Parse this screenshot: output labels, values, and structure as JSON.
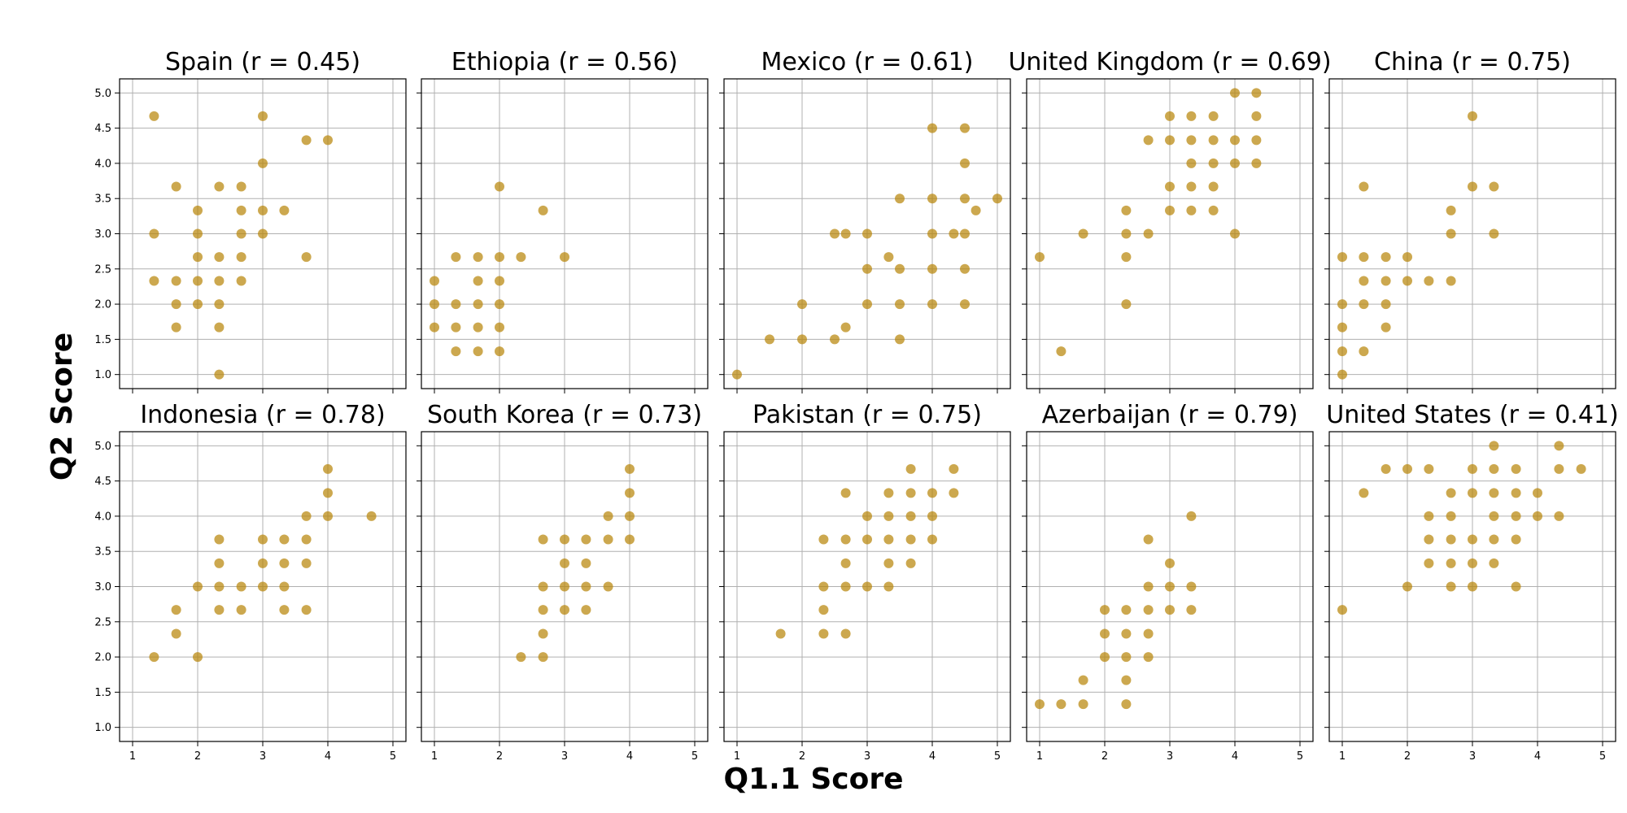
{
  "figure": {
    "xlabel": "Q1.1 Score",
    "ylabel": "Q2 Score",
    "point_color": "#b8860b"
  },
  "chart_data": [
    {
      "type": "scatter",
      "title": "Spain (r = 0.45)",
      "xlim": [
        0.8,
        5.2
      ],
      "ylim": [
        0.8,
        5.2
      ],
      "x_ticks": [
        "1",
        "2",
        "3",
        "4",
        "5"
      ],
      "y_ticks": [
        "1.0",
        "1.5",
        "2.0",
        "2.5",
        "3.0",
        "3.5",
        "4.0",
        "4.5",
        "5.0"
      ],
      "grid": true,
      "points": [
        [
          1.33,
          4.67
        ],
        [
          1.33,
          3.0
        ],
        [
          1.33,
          2.33
        ],
        [
          1.67,
          3.67
        ],
        [
          1.67,
          2.33
        ],
        [
          1.67,
          2.0
        ],
        [
          1.67,
          1.67
        ],
        [
          2.0,
          3.33
        ],
        [
          2.0,
          3.0
        ],
        [
          2.0,
          2.67
        ],
        [
          2.0,
          2.33
        ],
        [
          2.0,
          2.0
        ],
        [
          2.33,
          3.67
        ],
        [
          2.33,
          2.67
        ],
        [
          2.33,
          2.33
        ],
        [
          2.33,
          2.0
        ],
        [
          2.33,
          1.67
        ],
        [
          2.33,
          1.0
        ],
        [
          2.67,
          3.67
        ],
        [
          2.67,
          3.33
        ],
        [
          2.67,
          3.0
        ],
        [
          2.67,
          2.67
        ],
        [
          2.67,
          2.33
        ],
        [
          3.0,
          4.67
        ],
        [
          3.0,
          4.0
        ],
        [
          3.0,
          3.33
        ],
        [
          3.0,
          3.0
        ],
        [
          3.33,
          3.33
        ],
        [
          3.67,
          4.33
        ],
        [
          3.67,
          2.67
        ],
        [
          4.0,
          4.33
        ]
      ]
    },
    {
      "type": "scatter",
      "title": "Ethiopia (r = 0.56)",
      "xlim": [
        0.8,
        5.2
      ],
      "ylim": [
        0.8,
        5.2
      ],
      "x_ticks": [
        "1",
        "2",
        "3",
        "4",
        "5"
      ],
      "y_ticks": [
        "1.0",
        "1.5",
        "2.0",
        "2.5",
        "3.0",
        "3.5",
        "4.0",
        "4.5",
        "5.0"
      ],
      "grid": true,
      "points": [
        [
          1.0,
          2.33
        ],
        [
          1.0,
          2.0
        ],
        [
          1.0,
          1.67
        ],
        [
          1.33,
          2.67
        ],
        [
          1.33,
          2.0
        ],
        [
          1.33,
          1.67
        ],
        [
          1.33,
          1.33
        ],
        [
          1.67,
          2.67
        ],
        [
          1.67,
          2.33
        ],
        [
          1.67,
          2.0
        ],
        [
          1.67,
          1.67
        ],
        [
          1.67,
          1.33
        ],
        [
          2.0,
          3.67
        ],
        [
          2.0,
          2.67
        ],
        [
          2.0,
          2.33
        ],
        [
          2.0,
          2.0
        ],
        [
          2.0,
          1.67
        ],
        [
          2.0,
          1.33
        ],
        [
          2.33,
          2.67
        ],
        [
          2.67,
          3.33
        ],
        [
          3.0,
          2.67
        ]
      ]
    },
    {
      "type": "scatter",
      "title": "Mexico (r = 0.61)",
      "xlim": [
        0.8,
        5.2
      ],
      "ylim": [
        0.8,
        5.2
      ],
      "x_ticks": [
        "1",
        "2",
        "3",
        "4",
        "5"
      ],
      "y_ticks": [
        "1.0",
        "1.5",
        "2.0",
        "2.5",
        "3.0",
        "3.5",
        "4.0",
        "4.5",
        "5.0"
      ],
      "grid": true,
      "points": [
        [
          1.0,
          1.0
        ],
        [
          1.5,
          1.5
        ],
        [
          2.0,
          2.0
        ],
        [
          2.0,
          1.5
        ],
        [
          2.5,
          1.5
        ],
        [
          2.5,
          3.0
        ],
        [
          2.67,
          3.0
        ],
        [
          2.67,
          1.67
        ],
        [
          3.0,
          3.0
        ],
        [
          3.0,
          2.5
        ],
        [
          3.0,
          2.0
        ],
        [
          3.33,
          2.67
        ],
        [
          3.5,
          3.5
        ],
        [
          3.5,
          2.5
        ],
        [
          3.5,
          2.0
        ],
        [
          3.5,
          1.5
        ],
        [
          4.0,
          4.5
        ],
        [
          4.0,
          3.5
        ],
        [
          4.0,
          3.0
        ],
        [
          4.0,
          2.5
        ],
        [
          4.0,
          2.0
        ],
        [
          4.33,
          3.0
        ],
        [
          4.5,
          4.5
        ],
        [
          4.5,
          4.0
        ],
        [
          4.5,
          3.5
        ],
        [
          4.5,
          3.0
        ],
        [
          4.5,
          2.5
        ],
        [
          4.5,
          2.0
        ],
        [
          4.67,
          3.33
        ],
        [
          5.0,
          3.5
        ]
      ]
    },
    {
      "type": "scatter",
      "title": "United Kingdom (r = 0.69)",
      "xlim": [
        0.8,
        5.2
      ],
      "ylim": [
        0.8,
        5.2
      ],
      "x_ticks": [
        "1",
        "2",
        "3",
        "4",
        "5"
      ],
      "y_ticks": [
        "1.0",
        "1.5",
        "2.0",
        "2.5",
        "3.0",
        "3.5",
        "4.0",
        "4.5",
        "5.0"
      ],
      "grid": true,
      "points": [
        [
          1.0,
          2.67
        ],
        [
          1.33,
          1.33
        ],
        [
          1.67,
          3.0
        ],
        [
          2.33,
          3.33
        ],
        [
          2.33,
          3.0
        ],
        [
          2.33,
          2.67
        ],
        [
          2.33,
          2.0
        ],
        [
          2.67,
          4.33
        ],
        [
          2.67,
          3.0
        ],
        [
          3.0,
          4.67
        ],
        [
          3.0,
          4.33
        ],
        [
          3.0,
          3.67
        ],
        [
          3.0,
          3.33
        ],
        [
          3.33,
          4.67
        ],
        [
          3.33,
          4.33
        ],
        [
          3.33,
          4.0
        ],
        [
          3.33,
          3.67
        ],
        [
          3.33,
          3.33
        ],
        [
          3.67,
          4.67
        ],
        [
          3.67,
          4.33
        ],
        [
          3.67,
          4.0
        ],
        [
          3.67,
          3.67
        ],
        [
          3.67,
          3.33
        ],
        [
          4.0,
          5.0
        ],
        [
          4.0,
          4.33
        ],
        [
          4.0,
          4.0
        ],
        [
          4.0,
          3.0
        ],
        [
          4.33,
          5.0
        ],
        [
          4.33,
          4.67
        ],
        [
          4.33,
          4.33
        ],
        [
          4.33,
          4.0
        ]
      ]
    },
    {
      "type": "scatter",
      "title": "China (r = 0.75)",
      "xlim": [
        0.8,
        5.2
      ],
      "ylim": [
        0.8,
        5.2
      ],
      "x_ticks": [
        "1",
        "2",
        "3",
        "4",
        "5"
      ],
      "y_ticks": [
        "1.0",
        "1.5",
        "2.0",
        "2.5",
        "3.0",
        "3.5",
        "4.0",
        "4.5",
        "5.0"
      ],
      "grid": true,
      "points": [
        [
          1.0,
          2.67
        ],
        [
          1.0,
          2.0
        ],
        [
          1.0,
          1.67
        ],
        [
          1.0,
          1.33
        ],
        [
          1.0,
          1.0
        ],
        [
          1.33,
          3.67
        ],
        [
          1.33,
          2.67
        ],
        [
          1.33,
          2.33
        ],
        [
          1.33,
          2.0
        ],
        [
          1.33,
          1.33
        ],
        [
          1.67,
          2.67
        ],
        [
          1.67,
          2.33
        ],
        [
          1.67,
          2.0
        ],
        [
          1.67,
          1.67
        ],
        [
          2.0,
          2.67
        ],
        [
          2.0,
          2.33
        ],
        [
          2.33,
          2.33
        ],
        [
          2.67,
          3.33
        ],
        [
          2.67,
          3.0
        ],
        [
          2.67,
          2.33
        ],
        [
          3.0,
          4.67
        ],
        [
          3.0,
          3.67
        ],
        [
          3.33,
          3.67
        ],
        [
          3.33,
          3.0
        ]
      ]
    },
    {
      "type": "scatter",
      "title": "Indonesia (r = 0.78)",
      "xlim": [
        0.8,
        5.2
      ],
      "ylim": [
        0.8,
        5.2
      ],
      "x_ticks": [
        "1",
        "2",
        "3",
        "4",
        "5"
      ],
      "y_ticks": [
        "1.0",
        "1.5",
        "2.0",
        "2.5",
        "3.0",
        "3.5",
        "4.0",
        "4.5",
        "5.0"
      ],
      "grid": true,
      "points": [
        [
          1.33,
          2.0
        ],
        [
          1.67,
          2.67
        ],
        [
          1.67,
          2.33
        ],
        [
          2.0,
          3.0
        ],
        [
          2.0,
          2.0
        ],
        [
          2.33,
          3.67
        ],
        [
          2.33,
          3.33
        ],
        [
          2.33,
          3.0
        ],
        [
          2.33,
          2.67
        ],
        [
          2.67,
          3.0
        ],
        [
          2.67,
          2.67
        ],
        [
          3.0,
          3.67
        ],
        [
          3.0,
          3.33
        ],
        [
          3.0,
          3.0
        ],
        [
          3.33,
          3.67
        ],
        [
          3.33,
          3.33
        ],
        [
          3.33,
          3.0
        ],
        [
          3.33,
          2.67
        ],
        [
          3.67,
          4.0
        ],
        [
          3.67,
          3.67
        ],
        [
          3.67,
          3.33
        ],
        [
          3.67,
          2.67
        ],
        [
          4.0,
          4.67
        ],
        [
          4.0,
          4.33
        ],
        [
          4.0,
          4.0
        ],
        [
          4.67,
          4.0
        ]
      ]
    },
    {
      "type": "scatter",
      "title": "South Korea (r = 0.73)",
      "xlim": [
        0.8,
        5.2
      ],
      "ylim": [
        0.8,
        5.2
      ],
      "x_ticks": [
        "1",
        "2",
        "3",
        "4",
        "5"
      ],
      "y_ticks": [
        "1.0",
        "1.5",
        "2.0",
        "2.5",
        "3.0",
        "3.5",
        "4.0",
        "4.5",
        "5.0"
      ],
      "grid": true,
      "points": [
        [
          2.33,
          2.0
        ],
        [
          2.67,
          3.67
        ],
        [
          2.67,
          3.0
        ],
        [
          2.67,
          2.67
        ],
        [
          2.67,
          2.33
        ],
        [
          2.67,
          2.0
        ],
        [
          3.0,
          3.67
        ],
        [
          3.0,
          3.33
        ],
        [
          3.0,
          3.0
        ],
        [
          3.0,
          2.67
        ],
        [
          3.33,
          3.67
        ],
        [
          3.33,
          3.33
        ],
        [
          3.33,
          3.0
        ],
        [
          3.33,
          2.67
        ],
        [
          3.67,
          4.0
        ],
        [
          3.67,
          3.67
        ],
        [
          3.67,
          3.0
        ],
        [
          4.0,
          4.67
        ],
        [
          4.0,
          4.33
        ],
        [
          4.0,
          4.0
        ],
        [
          4.0,
          3.67
        ]
      ]
    },
    {
      "type": "scatter",
      "title": "Pakistan (r = 0.75)",
      "xlim": [
        0.8,
        5.2
      ],
      "ylim": [
        0.8,
        5.2
      ],
      "x_ticks": [
        "1",
        "2",
        "3",
        "4",
        "5"
      ],
      "y_ticks": [
        "1.0",
        "1.5",
        "2.0",
        "2.5",
        "3.0",
        "3.5",
        "4.0",
        "4.5",
        "5.0"
      ],
      "grid": true,
      "points": [
        [
          1.67,
          2.33
        ],
        [
          2.33,
          3.67
        ],
        [
          2.33,
          3.0
        ],
        [
          2.33,
          2.67
        ],
        [
          2.33,
          2.33
        ],
        [
          2.67,
          4.33
        ],
        [
          2.67,
          3.67
        ],
        [
          2.67,
          3.33
        ],
        [
          2.67,
          3.0
        ],
        [
          2.67,
          2.33
        ],
        [
          3.0,
          4.0
        ],
        [
          3.0,
          3.67
        ],
        [
          3.0,
          3.0
        ],
        [
          3.33,
          4.33
        ],
        [
          3.33,
          4.0
        ],
        [
          3.33,
          3.67
        ],
        [
          3.33,
          3.33
        ],
        [
          3.33,
          3.0
        ],
        [
          3.67,
          4.67
        ],
        [
          3.67,
          4.33
        ],
        [
          3.67,
          4.0
        ],
        [
          3.67,
          3.67
        ],
        [
          3.67,
          3.33
        ],
        [
          4.0,
          4.33
        ],
        [
          4.0,
          4.0
        ],
        [
          4.0,
          3.67
        ],
        [
          4.33,
          4.67
        ],
        [
          4.33,
          4.33
        ]
      ]
    },
    {
      "type": "scatter",
      "title": "Azerbaijan (r = 0.79)",
      "xlim": [
        0.8,
        5.2
      ],
      "ylim": [
        0.8,
        5.2
      ],
      "x_ticks": [
        "1",
        "2",
        "3",
        "4",
        "5"
      ],
      "y_ticks": [
        "1.0",
        "1.5",
        "2.0",
        "2.5",
        "3.0",
        "3.5",
        "4.0",
        "4.5",
        "5.0"
      ],
      "grid": true,
      "points": [
        [
          1.0,
          1.33
        ],
        [
          1.33,
          1.33
        ],
        [
          1.67,
          1.67
        ],
        [
          1.67,
          1.33
        ],
        [
          2.0,
          2.67
        ],
        [
          2.0,
          2.33
        ],
        [
          2.0,
          2.0
        ],
        [
          2.33,
          2.67
        ],
        [
          2.33,
          2.33
        ],
        [
          2.33,
          2.0
        ],
        [
          2.33,
          1.67
        ],
        [
          2.33,
          1.33
        ],
        [
          2.67,
          3.67
        ],
        [
          2.67,
          3.0
        ],
        [
          2.67,
          2.67
        ],
        [
          2.67,
          2.33
        ],
        [
          2.67,
          2.0
        ],
        [
          3.0,
          3.33
        ],
        [
          3.0,
          3.0
        ],
        [
          3.0,
          2.67
        ],
        [
          3.33,
          4.0
        ],
        [
          3.33,
          3.0
        ],
        [
          3.33,
          2.67
        ]
      ]
    },
    {
      "type": "scatter",
      "title": "United States (r = 0.41)",
      "xlim": [
        0.8,
        5.2
      ],
      "ylim": [
        0.8,
        5.2
      ],
      "x_ticks": [
        "1",
        "2",
        "3",
        "4",
        "5"
      ],
      "y_ticks": [
        "1.0",
        "1.5",
        "2.0",
        "2.5",
        "3.0",
        "3.5",
        "4.0",
        "4.5",
        "5.0"
      ],
      "grid": true,
      "points": [
        [
          1.0,
          2.67
        ],
        [
          1.33,
          4.33
        ],
        [
          1.67,
          4.67
        ],
        [
          2.0,
          4.67
        ],
        [
          2.0,
          3.0
        ],
        [
          2.33,
          4.67
        ],
        [
          2.33,
          4.0
        ],
        [
          2.33,
          3.67
        ],
        [
          2.33,
          3.33
        ],
        [
          2.67,
          4.33
        ],
        [
          2.67,
          4.0
        ],
        [
          2.67,
          3.67
        ],
        [
          2.67,
          3.33
        ],
        [
          2.67,
          3.0
        ],
        [
          3.0,
          4.67
        ],
        [
          3.0,
          4.33
        ],
        [
          3.0,
          3.67
        ],
        [
          3.0,
          3.33
        ],
        [
          3.0,
          3.0
        ],
        [
          3.33,
          5.0
        ],
        [
          3.33,
          4.67
        ],
        [
          3.33,
          4.33
        ],
        [
          3.33,
          4.0
        ],
        [
          3.33,
          3.67
        ],
        [
          3.33,
          3.33
        ],
        [
          3.67,
          4.67
        ],
        [
          3.67,
          4.33
        ],
        [
          3.67,
          4.0
        ],
        [
          3.67,
          3.67
        ],
        [
          3.67,
          3.0
        ],
        [
          4.0,
          4.33
        ],
        [
          4.0,
          4.0
        ],
        [
          4.33,
          5.0
        ],
        [
          4.33,
          4.67
        ],
        [
          4.33,
          4.0
        ],
        [
          4.67,
          4.67
        ]
      ]
    }
  ]
}
